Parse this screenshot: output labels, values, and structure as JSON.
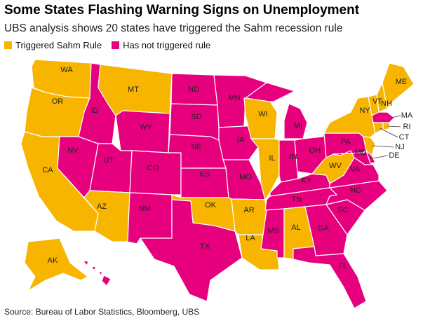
{
  "header": {
    "title": "Some States Flashing Warning Signs on Unemployment",
    "subtitle": "UBS analysis shows 20 states have triggered the Sahm recession rule"
  },
  "legend": [
    {
      "label": "Triggered Sahm Rule",
      "color": "#f7b500"
    },
    {
      "label": "Has not triggered rule",
      "color": "#e6007e"
    }
  ],
  "states": [
    {
      "label": "WA",
      "triggered": true
    },
    {
      "label": "OR",
      "triggered": true
    },
    {
      "label": "CA",
      "triggered": true
    },
    {
      "label": "NV",
      "triggered": false
    },
    {
      "label": "ID",
      "triggered": false
    },
    {
      "label": "MT",
      "triggered": true
    },
    {
      "label": "WY",
      "triggered": false
    },
    {
      "label": "UT",
      "triggered": false
    },
    {
      "label": "CO",
      "triggered": false
    },
    {
      "label": "AZ",
      "triggered": true
    },
    {
      "label": "NM",
      "triggered": false
    },
    {
      "label": "ND",
      "triggered": false
    },
    {
      "label": "SD",
      "triggered": false
    },
    {
      "label": "NE",
      "triggered": false
    },
    {
      "label": "KS",
      "triggered": false
    },
    {
      "label": "OK",
      "triggered": true
    },
    {
      "label": "TX",
      "triggered": false
    },
    {
      "label": "MN",
      "triggered": false
    },
    {
      "label": "IA",
      "triggered": false
    },
    {
      "label": "MO",
      "triggered": false
    },
    {
      "label": "AR",
      "triggered": true
    },
    {
      "label": "LA",
      "triggered": true
    },
    {
      "label": "WI",
      "triggered": true
    },
    {
      "label": "IL",
      "triggered": true
    },
    {
      "label": "MI",
      "triggered": false
    },
    {
      "label": "IN",
      "triggered": false
    },
    {
      "label": "OH",
      "triggered": false
    },
    {
      "label": "KY",
      "triggered": false
    },
    {
      "label": "TN",
      "triggered": false
    },
    {
      "label": "MS",
      "triggered": false
    },
    {
      "label": "AL",
      "triggered": true
    },
    {
      "label": "GA",
      "triggered": false
    },
    {
      "label": "FL",
      "triggered": false
    },
    {
      "label": "SC",
      "triggered": false
    },
    {
      "label": "NC",
      "triggered": false
    },
    {
      "label": "VA",
      "triggered": false
    },
    {
      "label": "WV",
      "triggered": true
    },
    {
      "label": "PA",
      "triggered": false
    },
    {
      "label": "MD",
      "triggered": false
    },
    {
      "label": "DE",
      "triggered": false
    },
    {
      "label": "NJ",
      "triggered": true
    },
    {
      "label": "NY",
      "triggered": true
    },
    {
      "label": "VT",
      "triggered": true
    },
    {
      "label": "NH",
      "triggered": true
    },
    {
      "label": "ME",
      "triggered": true
    },
    {
      "label": "MA",
      "triggered": false
    },
    {
      "label": "CT",
      "triggered": true
    },
    {
      "label": "RI",
      "triggered": true
    },
    {
      "label": "AK",
      "triggered": true
    },
    {
      "triggered": false
    }
  ],
  "source": "Source: Bureau of Labor Statistics, Bloomberg, UBS"
}
